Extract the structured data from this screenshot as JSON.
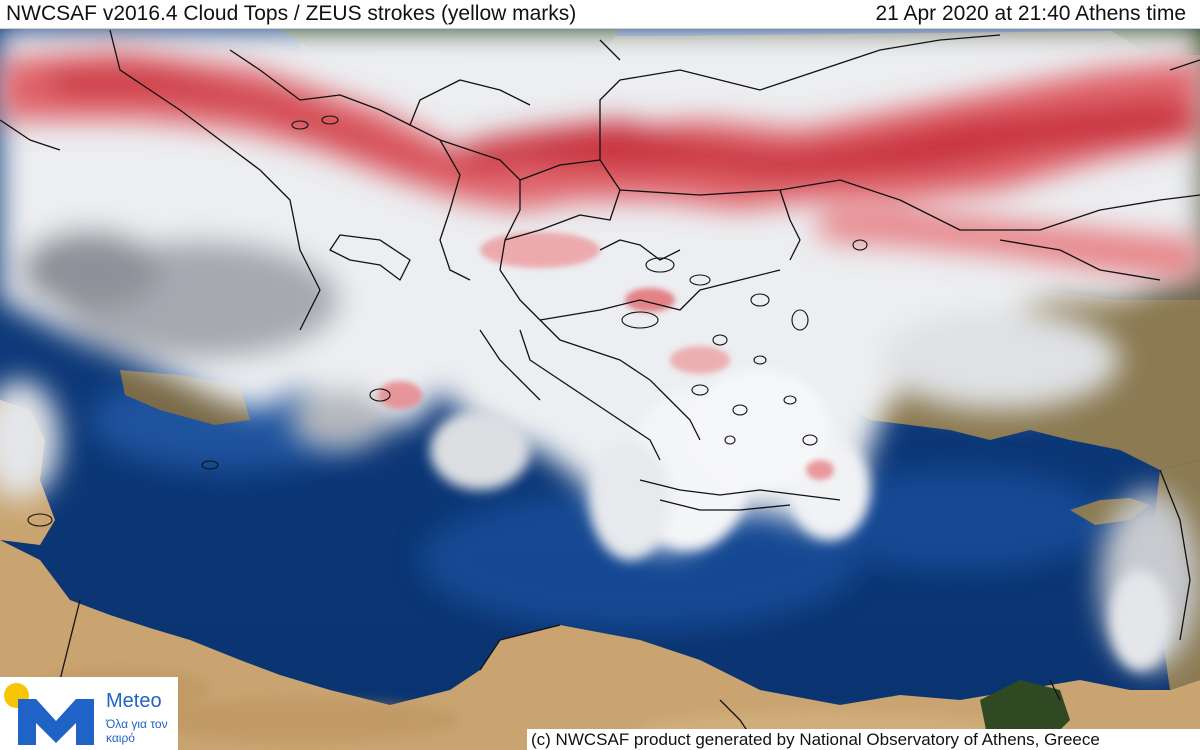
{
  "header": {
    "title": "NWCSAF v2016.4 Cloud Tops / ZEUS strokes (yellow marks)",
    "timestamp": "21 Apr 2020 at 21:40 Athens time"
  },
  "footer": {
    "credit": "(c) NWCSAF product generated by National Observatory of Athens, Greece"
  },
  "logo": {
    "brand": "Meteo",
    "tagline": "Όλα για τον καιρό",
    "colors": {
      "sun": "#f7c600",
      "mark": "#1f63c6"
    }
  },
  "map": {
    "colors": {
      "sea": "#103f85",
      "sea_light": "#2b66b8",
      "land_desert": "#c9a470",
      "land_green": "#2f4a22",
      "cloud_white": "#f2f2f4",
      "cloud_grey": "#9ea1a8",
      "high_top_red": "#d8444c",
      "border": "#111111"
    }
  }
}
